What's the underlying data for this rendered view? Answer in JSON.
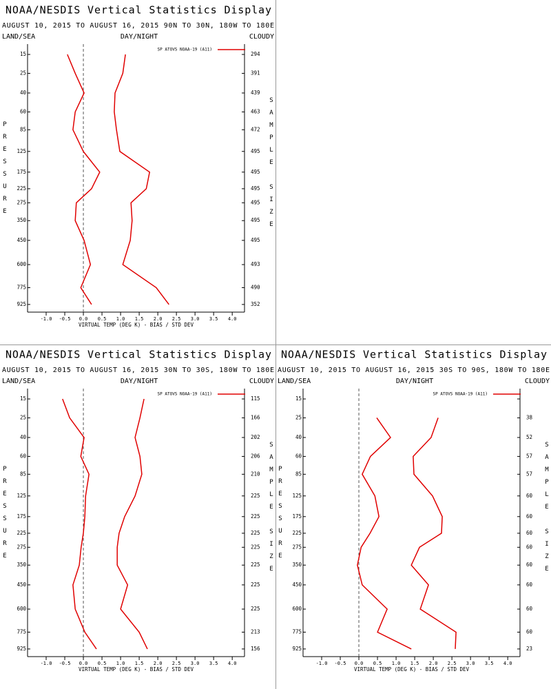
{
  "chart_data": [
    {
      "type": "line",
      "title": "NOAA/NESDIS Vertical Statistics Display",
      "subtitle": "AUGUST 10, 2015 TO AUGUST 16, 2015  90N TO 30N, 180W TO 180E",
      "left_label": "LAND/SEA",
      "center_label": "DAY/NIGHT",
      "right_label": "CLOUDY",
      "ylabel": "PRESSURE",
      "y2label": "SAMPLE SIZE",
      "xlabel": "VIRTUAL TEMP (DEG K) - BIAS / STD DEV",
      "y": [
        15,
        25,
        40,
        60,
        85,
        125,
        175,
        225,
        275,
        350,
        450,
        600,
        775,
        925
      ],
      "ylim": [
        11,
        1000
      ],
      "yticks": [
        15,
        25,
        40,
        60,
        85,
        125,
        175,
        225,
        275,
        350,
        450,
        600,
        775,
        925
      ],
      "xlim": [
        -1.5,
        4.33
      ],
      "xticks": [
        {
          "value": -1,
          "label": "-1.0"
        },
        -0.5,
        {
          "value": 0,
          "label": "0.0"
        },
        0.5,
        {
          "value": 1,
          "label": "1.0"
        },
        1.5,
        {
          "value": 2,
          "label": "2.0"
        },
        2.5,
        {
          "value": 3,
          "label": "3.0"
        },
        3.5,
        {
          "value": 4,
          "label": "4.0"
        }
      ],
      "sample_size": [
        294,
        391,
        439,
        463,
        472,
        495,
        495,
        495,
        495,
        495,
        495,
        493,
        490,
        352
      ],
      "series": [
        {
          "name": "SP ATOVS NOAA-19 (A11)",
          "color": "#e00000",
          "bias": [
            -0.43,
            -0.22,
            0.02,
            -0.22,
            -0.28,
            0.0,
            0.44,
            0.22,
            -0.19,
            -0.22,
            0.02,
            0.19,
            -0.07,
            0.22
          ],
          "std_dev": [
            1.13,
            1.06,
            0.85,
            0.83,
            0.89,
            0.98,
            1.78,
            1.69,
            1.28,
            1.31,
            1.26,
            1.06,
            1.96,
            2.3
          ]
        }
      ]
    },
    {
      "type": "line",
      "title": "NOAA/NESDIS Vertical Statistics Display",
      "subtitle": "AUGUST 10, 2015 TO AUGUST 16, 2015  30N TO 30S, 180W TO 180E",
      "left_label": "LAND/SEA",
      "center_label": "DAY/NIGHT",
      "right_label": "CLOUDY",
      "ylabel": "PRESSURE",
      "y2label": "SAMPLE SIZE",
      "xlabel": "VIRTUAL TEMP (DEG K) - BIAS / STD DEV",
      "y": [
        15,
        25,
        40,
        60,
        85,
        125,
        175,
        225,
        275,
        350,
        450,
        600,
        775,
        925
      ],
      "ylim": [
        11,
        1000
      ],
      "yticks": [
        15,
        25,
        40,
        60,
        85,
        125,
        175,
        225,
        275,
        350,
        450,
        600,
        775,
        925
      ],
      "xlim": [
        -1.5,
        4.33
      ],
      "xticks": [
        {
          "value": -1,
          "label": "-1.0"
        },
        -0.5,
        {
          "value": 0,
          "label": "0.0"
        },
        0.5,
        {
          "value": 1,
          "label": "1.0"
        },
        1.5,
        {
          "value": 2,
          "label": "2.0"
        },
        2.5,
        {
          "value": 3,
          "label": "3.0"
        },
        3.5,
        {
          "value": 4,
          "label": "4.0"
        }
      ],
      "sample_size": [
        115,
        166,
        202,
        206,
        210,
        225,
        225,
        225,
        225,
        225,
        225,
        225,
        213,
        156
      ],
      "series": [
        {
          "name": "SP ATOVS NOAA-19 (A11)",
          "color": "#e00000",
          "bias": [
            -0.56,
            -0.37,
            0.02,
            -0.07,
            0.15,
            0.06,
            0.04,
            0.0,
            -0.06,
            -0.11,
            -0.28,
            -0.22,
            0.04,
            0.35
          ],
          "std_dev": [
            1.63,
            1.52,
            1.39,
            1.52,
            1.57,
            1.39,
            1.11,
            0.96,
            0.91,
            0.91,
            1.19,
            1.0,
            1.5,
            1.72
          ]
        }
      ]
    },
    {
      "type": "line",
      "title": "NOAA/NESDIS Vertical Statistics Display",
      "subtitle": "AUGUST 10, 2015 TO AUGUST 16, 2015  30S TO 90S, 180W TO 180E",
      "left_label": "LAND/SEA",
      "center_label": "DAY/NIGHT",
      "right_label": "CLOUDY",
      "ylabel": "PRESSURE",
      "y2label": "SAMPLE SIZE",
      "xlabel": "VIRTUAL TEMP (DEG K) - BIAS / STD DEV",
      "y": [
        15,
        25,
        40,
        60,
        85,
        125,
        175,
        225,
        275,
        350,
        450,
        600,
        775,
        925
      ],
      "ylim": [
        11,
        1000
      ],
      "yticks": [
        15,
        25,
        40,
        60,
        85,
        125,
        175,
        225,
        275,
        350,
        450,
        600,
        775,
        925
      ],
      "xlim": [
        -1.5,
        4.33
      ],
      "xticks": [
        {
          "value": -1,
          "label": "-1.0"
        },
        -0.5,
        {
          "value": 0,
          "label": "0.0"
        },
        0.5,
        {
          "value": 1,
          "label": "1.0"
        },
        1.5,
        {
          "value": 2,
          "label": "2.0"
        },
        2.5,
        {
          "value": 3,
          "label": "3.0"
        },
        3.5,
        {
          "value": 4,
          "label": "4.0"
        }
      ],
      "sample_size": [
        null,
        38,
        52,
        57,
        57,
        60,
        60,
        60,
        60,
        60,
        60,
        60,
        60,
        23
      ],
      "series": [
        {
          "name": "SP ATOVS NOAA-19 (A11)",
          "color": "#e00000",
          "bias": [
            null,
            0.48,
            0.85,
            0.31,
            0.09,
            0.43,
            0.54,
            0.3,
            0.06,
            -0.04,
            0.09,
            0.76,
            0.5,
            1.41
          ],
          "std_dev": [
            null,
            2.13,
            1.94,
            1.46,
            1.48,
            1.98,
            2.24,
            2.22,
            1.63,
            1.41,
            1.87,
            1.65,
            2.61,
            2.59
          ]
        }
      ]
    }
  ]
}
